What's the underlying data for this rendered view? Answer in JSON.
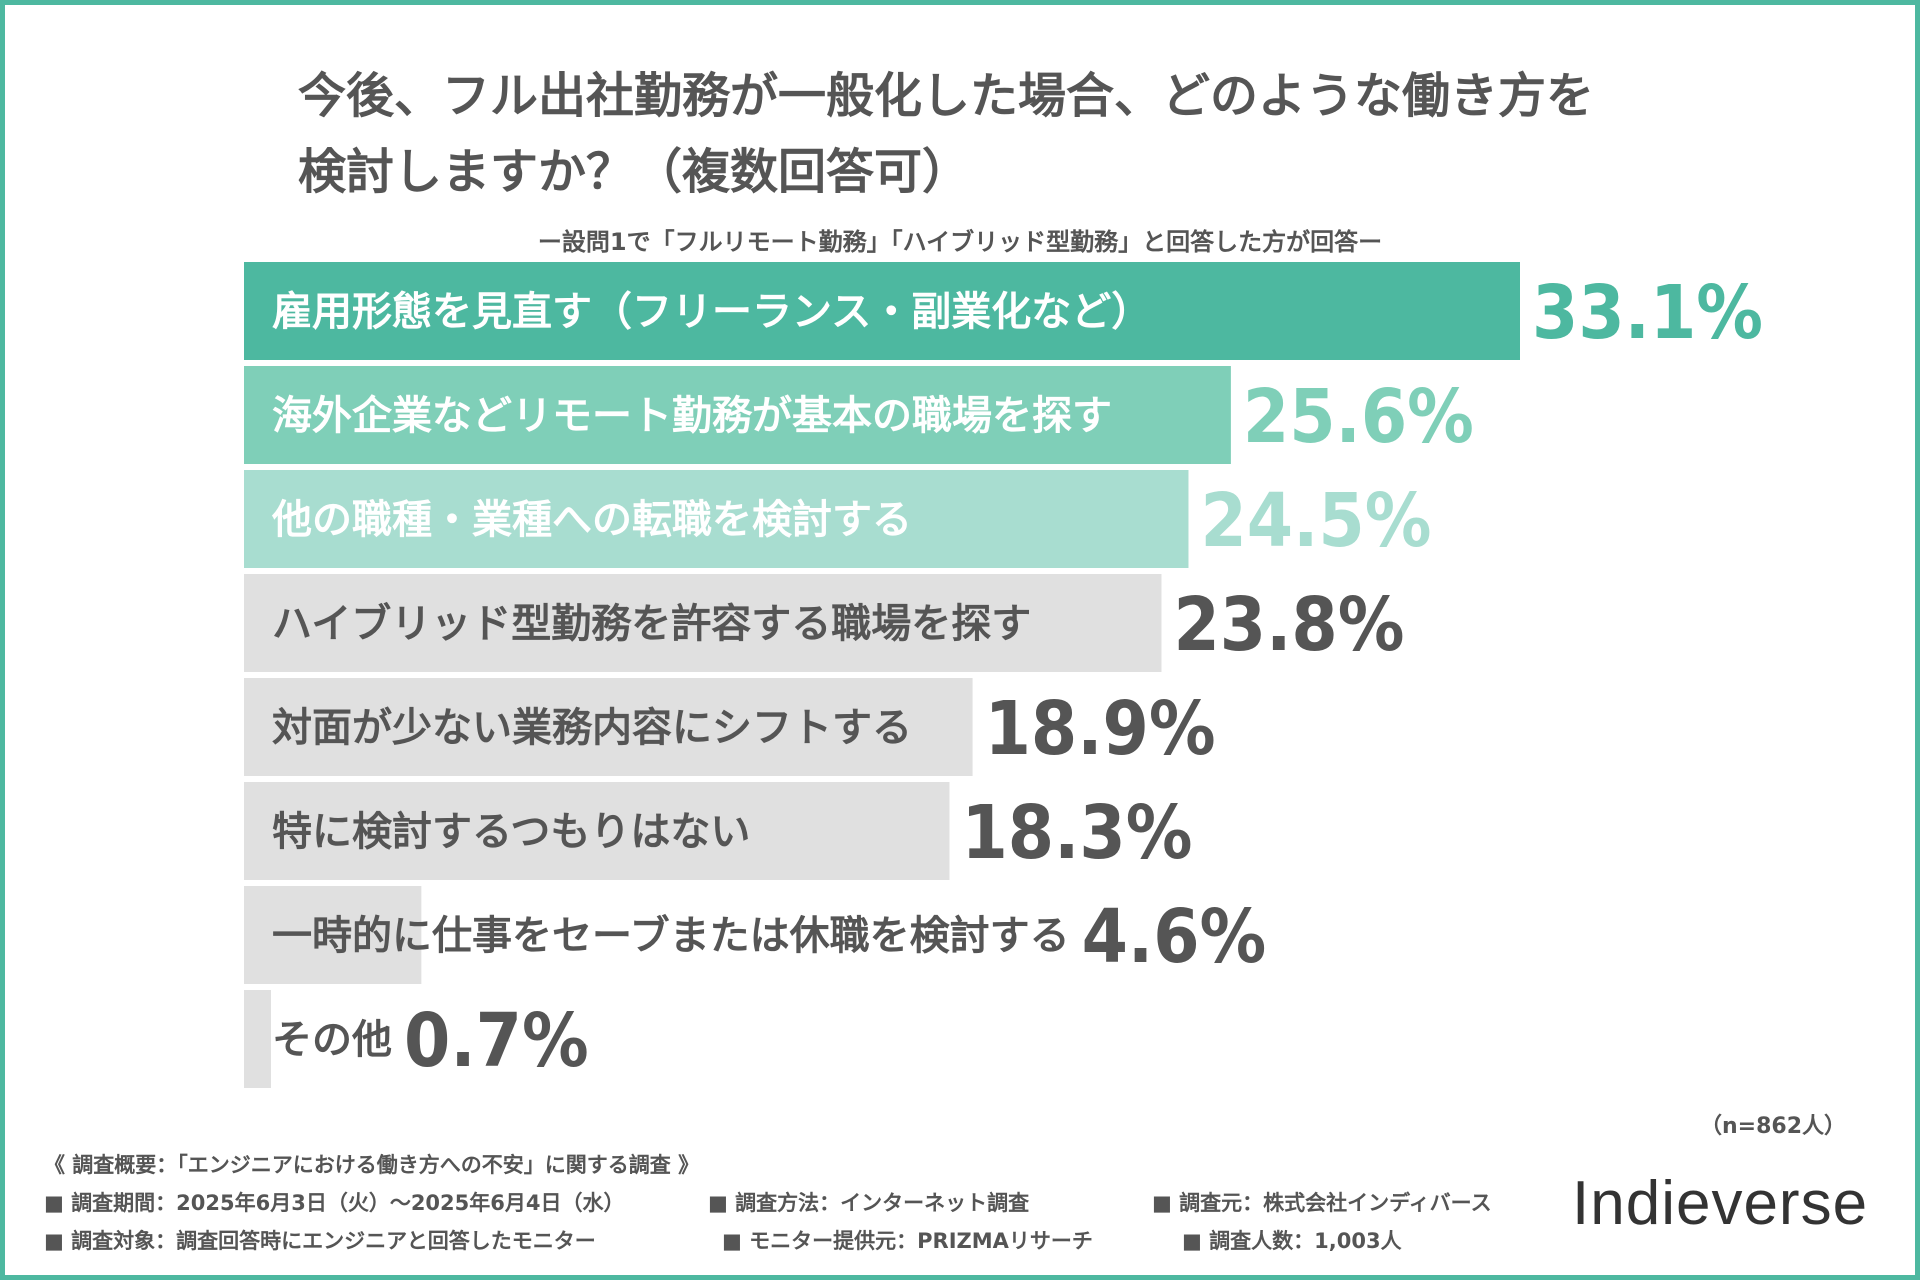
{
  "title": {
    "line1": "今後、フル出社勤務が一般化した場合、どのような働き方を",
    "line2": "検討しますか？（複数回答可）"
  },
  "subtitle": "ー設問1で「フルリモート勤務」「ハイブリッド型勤務」と回答した方が回答ー",
  "chart_data": {
    "type": "bar",
    "orientation": "horizontal",
    "categories": [
      "雇用形態を見直す（フリーランス・副業化など）",
      "海外企業などリモート勤務が基本の職場を探す",
      "他の職種・業種への転職を検討する",
      "ハイブリッド型勤務を許容する職場を探す",
      "対面が少ない業務内容にシフトする",
      "特に検討するつもりはない",
      "一時的に仕事をセーブまたは休職を検討する",
      "その他"
    ],
    "values": [
      33.1,
      25.6,
      24.5,
      23.8,
      18.9,
      18.3,
      4.6,
      0.7
    ],
    "value_labels": [
      "33.1%",
      "25.6%",
      "24.5%",
      "23.8%",
      "18.9%",
      "18.3%",
      "4.6%",
      "0.7%"
    ],
    "bar_colors": [
      "#4db8a0",
      "#7fcfb8",
      "#a8ddd0",
      "#e0e0e0",
      "#e0e0e0",
      "#e0e0e0",
      "#e0e0e0",
      "#e0e0e0"
    ],
    "label_colors": [
      "#ffffff",
      "#ffffff",
      "#ffffff",
      "#555555",
      "#555555",
      "#555555",
      "#555555",
      "#555555"
    ],
    "value_colors": [
      "#4db8a0",
      "#7fcfb8",
      "#a8ddd0",
      "#555555",
      "#555555",
      "#555555",
      "#555555",
      "#555555"
    ],
    "xlim": [
      0,
      33.1
    ],
    "unit": "%"
  },
  "n_note": "（n=862人）",
  "footer": {
    "heading": "《 調査概要：「エンジニアにおける働き方への不安」に関する調査 》",
    "period": "■ 調査期間：2025年6月3日（火）〜2025年6月4日（水）",
    "method": "■ 調査方法：インターネット調査",
    "source": "■ 調査元：株式会社インディバース",
    "target": "■ 調査対象：調査回答時にエンジニアと回答したモニター",
    "provider": "■ モニター提供元：PRIZMAリサーチ",
    "count": "■ 調査人数：1,003人"
  },
  "logo": "Indieverse",
  "colors": {
    "accent": "#4db8a0",
    "text": "#555555",
    "border": "#4db8a0"
  }
}
